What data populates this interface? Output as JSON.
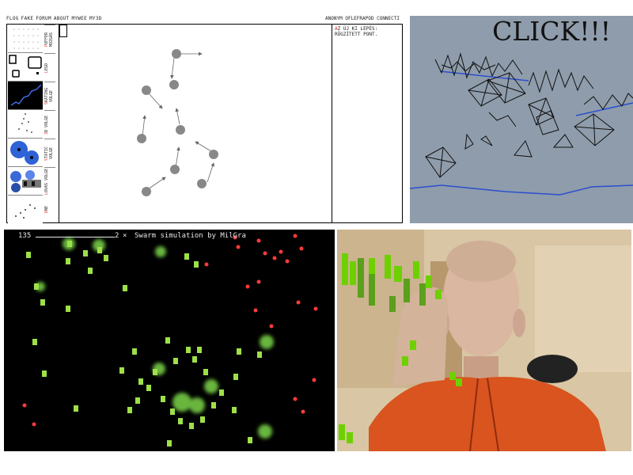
{
  "physics_app": {
    "nav_left": [
      "FLOG",
      "FAKE",
      "FORUM",
      "ABOUT",
      "MYWEE",
      "MY3D"
    ],
    "nav_right": [
      "ANONYM",
      "OFLEFRAPOD",
      "CONNECTI"
    ],
    "info_text": "AZ ÚJ KI LÉPÉS: RÖGZÍTETT PONT.",
    "sidebar_labels": [
      "PUFFER MOZGÁS",
      "LEGO",
      "SKÁTING VOLGE",
      "3D VOLGE",
      "STATIC VOLGE",
      "LOVAS VOLGE",
      "DNE"
    ]
  },
  "click3d": {
    "title": "CLICK!!!"
  },
  "swarm": {
    "count": "135",
    "speed": "2",
    "close_glyph": "×",
    "title": "Swarm simulation by MilGra"
  },
  "webcam": {}
}
